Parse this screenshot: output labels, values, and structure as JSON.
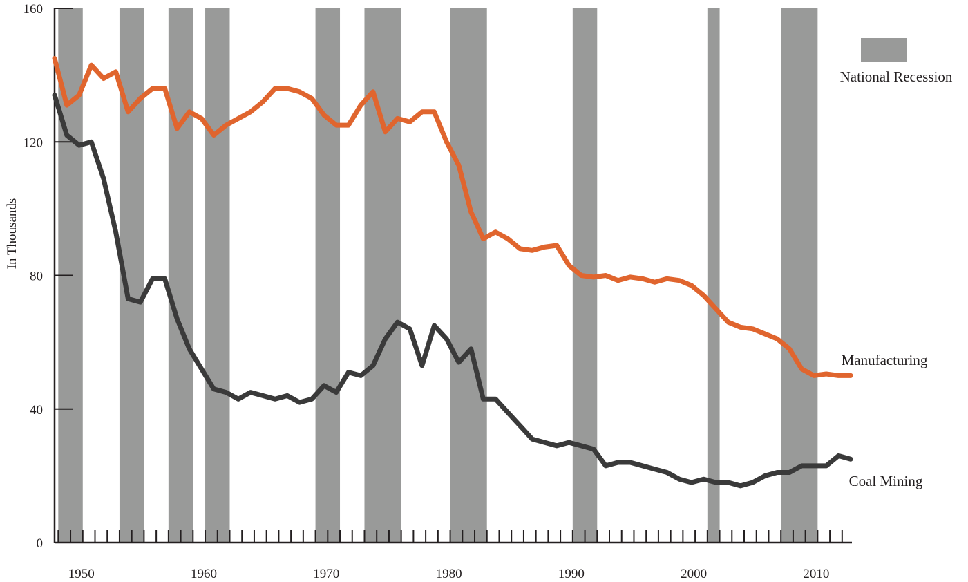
{
  "chart_data": {
    "type": "line",
    "xlim": [
      1947.7,
      2012.8
    ],
    "ylim": [
      0,
      160
    ],
    "ylabel": "In Thousands",
    "xlabel": "",
    "y_ticks": [
      0,
      40,
      80,
      120,
      160
    ],
    "y_tick_labels": [
      "0",
      "40",
      "80",
      "120",
      "160"
    ],
    "x_ticks": [
      1950,
      1960,
      1970,
      1980,
      1990,
      2000,
      2010
    ],
    "x_tick_labels": [
      "1950",
      "1960",
      "1970",
      "1980",
      "1990",
      "2000",
      "2010"
    ],
    "minor_x_tick_start": 1948,
    "minor_x_tick_end": 2012,
    "recessions": [
      [
        1948.0,
        1950.0
      ],
      [
        1953.0,
        1955.0
      ],
      [
        1957.0,
        1959.0
      ],
      [
        1960.0,
        1962.0
      ],
      [
        1969.0,
        1971.0
      ],
      [
        1973.0,
        1976.0
      ],
      [
        1980.0,
        1983.0
      ],
      [
        1990.0,
        1992.0
      ],
      [
        2001.0,
        2002.0
      ],
      [
        2007.0,
        2010.0
      ]
    ],
    "legend": {
      "label": "National Recession",
      "position": "top-right",
      "color": "#999a99"
    },
    "series": [
      {
        "name": "Manufacturing",
        "color": "#e0652e",
        "x": [
          1947.7,
          1948.7,
          1949.7,
          1950.7,
          1951.7,
          1952.7,
          1953.7,
          1954.7,
          1955.7,
          1956.7,
          1957.7,
          1958.7,
          1959.7,
          1960.7,
          1961.7,
          1962.7,
          1963.7,
          1964.7,
          1965.7,
          1966.7,
          1967.7,
          1968.7,
          1969.7,
          1970.7,
          1971.7,
          1972.7,
          1973.7,
          1974.7,
          1975.7,
          1976.7,
          1977.7,
          1978.7,
          1979.7,
          1980.7,
          1981.7,
          1982.7,
          1983.7,
          1984.7,
          1985.7,
          1986.7,
          1987.7,
          1988.7,
          1989.7,
          1990.7,
          1991.7,
          1992.7,
          1993.7,
          1994.7,
          1995.7,
          1996.7,
          1997.7,
          1998.7,
          1999.7,
          2000.7,
          2001.7,
          2002.7,
          2003.7,
          2004.7,
          2005.7,
          2006.7,
          2007.7,
          2008.7,
          2009.7,
          2010.7,
          2011.7,
          2012.7
        ],
        "y": [
          145,
          131,
          134,
          143,
          139,
          141,
          129,
          133,
          136,
          136,
          124,
          129,
          127,
          122,
          125,
          127,
          129,
          132,
          136,
          136,
          135,
          133,
          128,
          125,
          125,
          131,
          135,
          123,
          127,
          126,
          129,
          129,
          120,
          113,
          99,
          91,
          93,
          91,
          88,
          87.5,
          88.5,
          89,
          83,
          80,
          79.5,
          80,
          78.5,
          79.5,
          79,
          78,
          79,
          78.5,
          77,
          74,
          70,
          66,
          64.5,
          64,
          62.5,
          61,
          58,
          52,
          50,
          50.5,
          50,
          50
        ]
      },
      {
        "name": "Coal Mining",
        "color": "#3a3a3a",
        "x": [
          1947.7,
          1948.7,
          1949.7,
          1950.7,
          1951.7,
          1952.7,
          1953.7,
          1954.7,
          1955.7,
          1956.7,
          1957.7,
          1958.7,
          1959.7,
          1960.7,
          1961.7,
          1962.7,
          1963.7,
          1964.7,
          1965.7,
          1966.7,
          1967.7,
          1968.7,
          1969.7,
          1970.7,
          1971.7,
          1972.7,
          1973.7,
          1974.7,
          1975.7,
          1976.7,
          1977.7,
          1978.7,
          1979.7,
          1980.7,
          1981.7,
          1982.7,
          1983.7,
          1984.7,
          1985.7,
          1986.7,
          1987.7,
          1988.7,
          1989.7,
          1990.7,
          1991.7,
          1992.7,
          1993.7,
          1994.7,
          1995.7,
          1996.7,
          1997.7,
          1998.7,
          1999.7,
          2000.7,
          2001.7,
          2002.7,
          2003.7,
          2004.7,
          2005.7,
          2006.7,
          2007.7,
          2008.7,
          2009.7,
          2010.7,
          2011.7,
          2012.7
        ],
        "y": [
          134,
          122,
          119,
          120,
          109,
          93,
          73,
          72,
          79,
          79,
          67,
          58,
          52,
          46,
          45,
          43,
          45,
          44,
          43,
          44,
          42,
          43,
          47,
          45,
          51,
          50,
          53,
          61,
          66,
          64,
          53,
          65,
          61,
          54,
          58,
          43,
          43,
          39,
          35,
          31,
          30,
          29,
          30,
          29,
          28,
          23,
          24,
          24,
          23,
          22,
          21,
          19,
          18,
          19,
          18,
          18,
          17,
          18,
          20,
          21,
          21,
          23,
          23,
          23,
          26,
          25
        ]
      }
    ]
  }
}
